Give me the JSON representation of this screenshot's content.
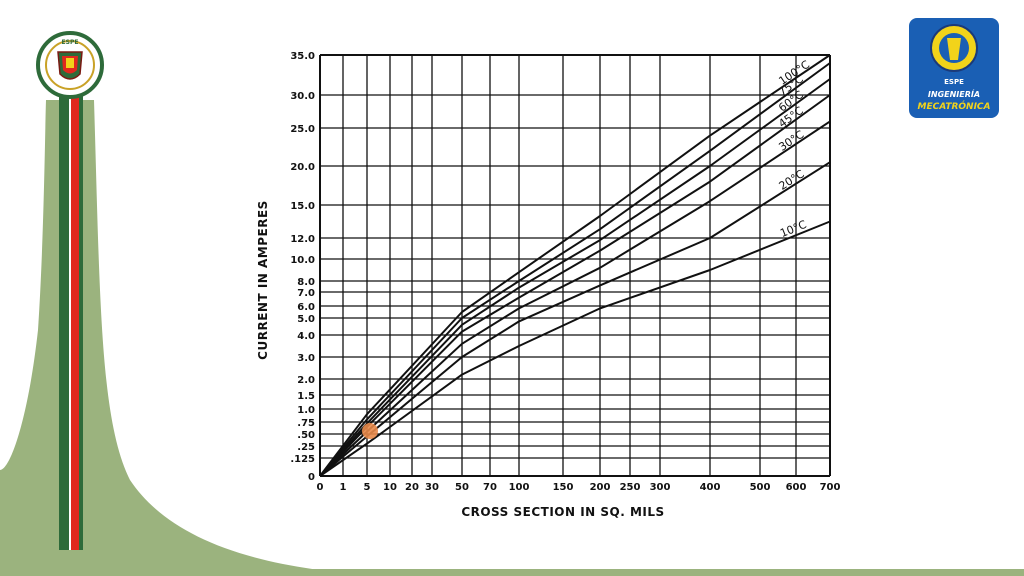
{
  "logos": {
    "left_logo_text": "ESPE",
    "right_logo": {
      "line1": "ESPE",
      "line2": "INGENIERÍA",
      "line3": "MECATRÓNICA"
    }
  },
  "colors": {
    "slide_green": "#9bb37e",
    "stripe_dark_green": "#2e6b3a",
    "stripe_red": "#e0281e",
    "logo_blue": "#1a5fb4",
    "logo_yellow": "#f2d31a",
    "marker_orange": "#e8894a",
    "grid_line": "#111111"
  },
  "chart_data": {
    "type": "line",
    "xlabel": "CROSS SECTION IN SQ. MILS",
    "ylabel": "CURRENT IN AMPERES",
    "x_ticks": [
      "0",
      "1",
      "5",
      "10",
      "20",
      "30",
      "50",
      "70",
      "100",
      "150",
      "200",
      "250",
      "300",
      "400",
      "500",
      "600",
      "700"
    ],
    "y_ticks": [
      "0",
      ".125",
      ".25",
      ".50",
      ".75",
      "1.0",
      "1.5",
      "2.0",
      "3.0",
      "4.0",
      "5.0",
      "6.0",
      "7.0",
      "8.0",
      "10.0",
      "12.0",
      "15.0",
      "20.0",
      "25.0",
      "30.0",
      "35.0"
    ],
    "xlim": [
      0,
      700
    ],
    "ylim": [
      0,
      35
    ],
    "grid": true,
    "series": [
      {
        "name": "10°C",
        "x": [
          0,
          5,
          50,
          100,
          200,
          400,
          700
        ],
        "y": [
          0,
          0.3,
          2.2,
          3.5,
          5.8,
          9,
          13.5
        ]
      },
      {
        "name": "20°C",
        "x": [
          0,
          5,
          50,
          100,
          200,
          400,
          700
        ],
        "y": [
          0,
          0.45,
          3,
          4.8,
          7.6,
          12,
          20.5
        ]
      },
      {
        "name": "30°C",
        "x": [
          0,
          5,
          50,
          100,
          200,
          400,
          700
        ],
        "y": [
          0,
          0.55,
          3.6,
          5.8,
          9.2,
          15.5,
          26
        ]
      },
      {
        "name": "45°C",
        "x": [
          0,
          5,
          50,
          100,
          200,
          400,
          700
        ],
        "y": [
          0,
          0.65,
          4.2,
          6.6,
          10.8,
          18,
          30
        ]
      },
      {
        "name": "60°C",
        "x": [
          0,
          5,
          50,
          100,
          200,
          400,
          700
        ],
        "y": [
          0,
          0.72,
          4.6,
          7.4,
          11.8,
          20,
          32
        ]
      },
      {
        "name": "75°C",
        "x": [
          0,
          5,
          50,
          100,
          200,
          400,
          700
        ],
        "y": [
          0,
          0.8,
          5,
          8,
          12.8,
          22,
          34
        ]
      },
      {
        "name": "100°C",
        "x": [
          0,
          5,
          50,
          100,
          200,
          400,
          700
        ],
        "y": [
          0,
          0.9,
          5.5,
          8.8,
          14,
          24,
          35
        ]
      }
    ],
    "highlight_point": {
      "x": 5,
      "y": 0.5
    }
  }
}
